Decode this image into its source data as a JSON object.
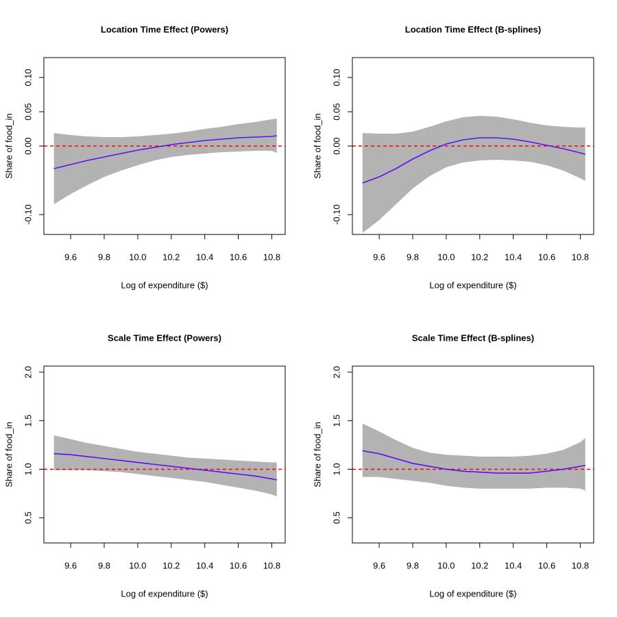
{
  "chart_data": [
    {
      "type": "line",
      "title": "Location Time Effect (Powers)",
      "xlabel": "Log of expenditure ($)",
      "ylabel": "Share of food_in",
      "x": [
        9.5,
        9.6,
        9.7,
        9.8,
        9.9,
        10.0,
        10.1,
        10.2,
        10.3,
        10.4,
        10.5,
        10.6,
        10.7,
        10.8,
        10.83
      ],
      "line": {
        "color": "#5a10f0",
        "values": [
          -0.033,
          -0.027,
          -0.021,
          -0.016,
          -0.011,
          -0.006,
          -0.002,
          0.002,
          0.005,
          0.008,
          0.01,
          0.012,
          0.013,
          0.014,
          0.015
        ]
      },
      "band": {
        "color": "#b3b3b3",
        "upper": [
          0.019,
          0.016,
          0.014,
          0.013,
          0.013,
          0.014,
          0.016,
          0.018,
          0.021,
          0.025,
          0.028,
          0.032,
          0.035,
          0.039,
          0.04
        ],
        "lower": [
          -0.085,
          -0.07,
          -0.057,
          -0.045,
          -0.036,
          -0.028,
          -0.021,
          -0.016,
          -0.013,
          -0.011,
          -0.009,
          -0.008,
          -0.007,
          -0.007,
          -0.01
        ]
      },
      "hline": {
        "value": 0,
        "color": "#ff0000"
      },
      "xlim": [
        9.44,
        10.88
      ],
      "xticks": [
        9.6,
        9.8,
        {
          "value": 10.0,
          "label": "10.0"
        },
        10.2,
        10.4,
        10.6,
        10.8
      ],
      "ylim": [
        -0.129,
        0.129
      ],
      "yticks": [
        {
          "value": -0.1,
          "label": "-0.10"
        },
        {
          "value": 0,
          "label": "0.00"
        },
        {
          "value": 0.05,
          "label": "0.05"
        },
        {
          "value": 0.1,
          "label": "0.10"
        }
      ]
    },
    {
      "type": "line",
      "title": "Location Time Effect (B-splines)",
      "xlabel": "Log of expenditure ($)",
      "ylabel": "Share of food_in",
      "x": [
        9.5,
        9.6,
        9.7,
        9.8,
        9.9,
        10.0,
        10.1,
        10.2,
        10.3,
        10.4,
        10.5,
        10.6,
        10.7,
        10.8,
        10.83
      ],
      "line": {
        "color": "#5a10f0",
        "values": [
          -0.054,
          -0.045,
          -0.033,
          -0.019,
          -0.007,
          0.003,
          0.009,
          0.012,
          0.012,
          0.01,
          0.006,
          0.001,
          -0.004,
          -0.01,
          -0.012
        ]
      },
      "band": {
        "color": "#b3b3b3",
        "upper": [
          0.019,
          0.018,
          0.018,
          0.021,
          0.028,
          0.036,
          0.042,
          0.044,
          0.043,
          0.039,
          0.034,
          0.03,
          0.028,
          0.027,
          0.027
        ],
        "lower": [
          -0.127,
          -0.108,
          -0.085,
          -0.062,
          -0.044,
          -0.031,
          -0.024,
          -0.021,
          -0.02,
          -0.021,
          -0.023,
          -0.028,
          -0.036,
          -0.047,
          -0.051
        ]
      },
      "hline": {
        "value": 0,
        "color": "#ff0000"
      },
      "xlim": [
        9.44,
        10.88
      ],
      "xticks": [
        9.6,
        9.8,
        {
          "value": 10.0,
          "label": "10.0"
        },
        10.2,
        10.4,
        10.6,
        10.8
      ],
      "ylim": [
        -0.129,
        0.129
      ],
      "yticks": [
        {
          "value": -0.1,
          "label": "-0.10"
        },
        {
          "value": 0,
          "label": "0.00"
        },
        {
          "value": 0.05,
          "label": "0.05"
        },
        {
          "value": 0.1,
          "label": "0.10"
        }
      ]
    },
    {
      "type": "line",
      "title": "Scale Time Effect (Powers)",
      "xlabel": "Log of expenditure ($)",
      "ylabel": "Share of food_in",
      "x": [
        9.5,
        9.6,
        9.7,
        9.8,
        9.9,
        10.0,
        10.1,
        10.2,
        10.3,
        10.4,
        10.5,
        10.6,
        10.7,
        10.8,
        10.83
      ],
      "line": {
        "color": "#5a10f0",
        "values": [
          1.16,
          1.15,
          1.13,
          1.11,
          1.09,
          1.07,
          1.05,
          1.03,
          1.01,
          0.99,
          0.97,
          0.95,
          0.93,
          0.9,
          0.89
        ]
      },
      "band": {
        "color": "#b3b3b3",
        "upper": [
          1.35,
          1.31,
          1.27,
          1.24,
          1.21,
          1.18,
          1.16,
          1.14,
          1.12,
          1.11,
          1.1,
          1.09,
          1.08,
          1.07,
          1.07
        ],
        "lower": [
          0.99,
          0.99,
          0.99,
          0.98,
          0.97,
          0.95,
          0.93,
          0.91,
          0.89,
          0.87,
          0.84,
          0.81,
          0.78,
          0.74,
          0.72
        ]
      },
      "hline": {
        "value": 1,
        "color": "#ff0000"
      },
      "xlim": [
        9.44,
        10.88
      ],
      "xticks": [
        9.6,
        9.8,
        {
          "value": 10.0,
          "label": "10.0"
        },
        10.2,
        10.4,
        10.6,
        10.8
      ],
      "ylim": [
        0.24,
        2.063
      ],
      "yticks": [
        0.5,
        {
          "value": 1.0,
          "label": "1.0"
        },
        1.5,
        {
          "value": 2.0,
          "label": "2.0"
        }
      ]
    },
    {
      "type": "line",
      "title": "Scale Time Effect (B-splines)",
      "xlabel": "Log of expenditure ($)",
      "ylabel": "Share of food_in",
      "x": [
        9.5,
        9.6,
        9.7,
        9.8,
        9.9,
        10.0,
        10.1,
        10.2,
        10.3,
        10.4,
        10.5,
        10.6,
        10.7,
        10.8,
        10.83
      ],
      "line": {
        "color": "#5a10f0",
        "values": [
          1.19,
          1.16,
          1.11,
          1.06,
          1.03,
          1.0,
          0.98,
          0.97,
          0.96,
          0.96,
          0.96,
          0.98,
          1.0,
          1.03,
          1.04
        ]
      },
      "band": {
        "color": "#b3b3b3",
        "upper": [
          1.47,
          1.39,
          1.3,
          1.22,
          1.17,
          1.15,
          1.14,
          1.13,
          1.13,
          1.13,
          1.14,
          1.16,
          1.2,
          1.28,
          1.32
        ],
        "lower": [
          0.92,
          0.92,
          0.9,
          0.88,
          0.86,
          0.83,
          0.81,
          0.8,
          0.8,
          0.8,
          0.8,
          0.81,
          0.81,
          0.8,
          0.78
        ]
      },
      "hline": {
        "value": 1,
        "color": "#ff0000"
      },
      "xlim": [
        9.44,
        10.88
      ],
      "xticks": [
        9.6,
        9.8,
        {
          "value": 10.0,
          "label": "10.0"
        },
        10.2,
        10.4,
        10.6,
        10.8
      ],
      "ylim": [
        0.24,
        2.063
      ],
      "yticks": [
        0.5,
        {
          "value": 1.0,
          "label": "1.0"
        },
        1.5,
        {
          "value": 2.0,
          "label": "2.0"
        }
      ]
    }
  ]
}
